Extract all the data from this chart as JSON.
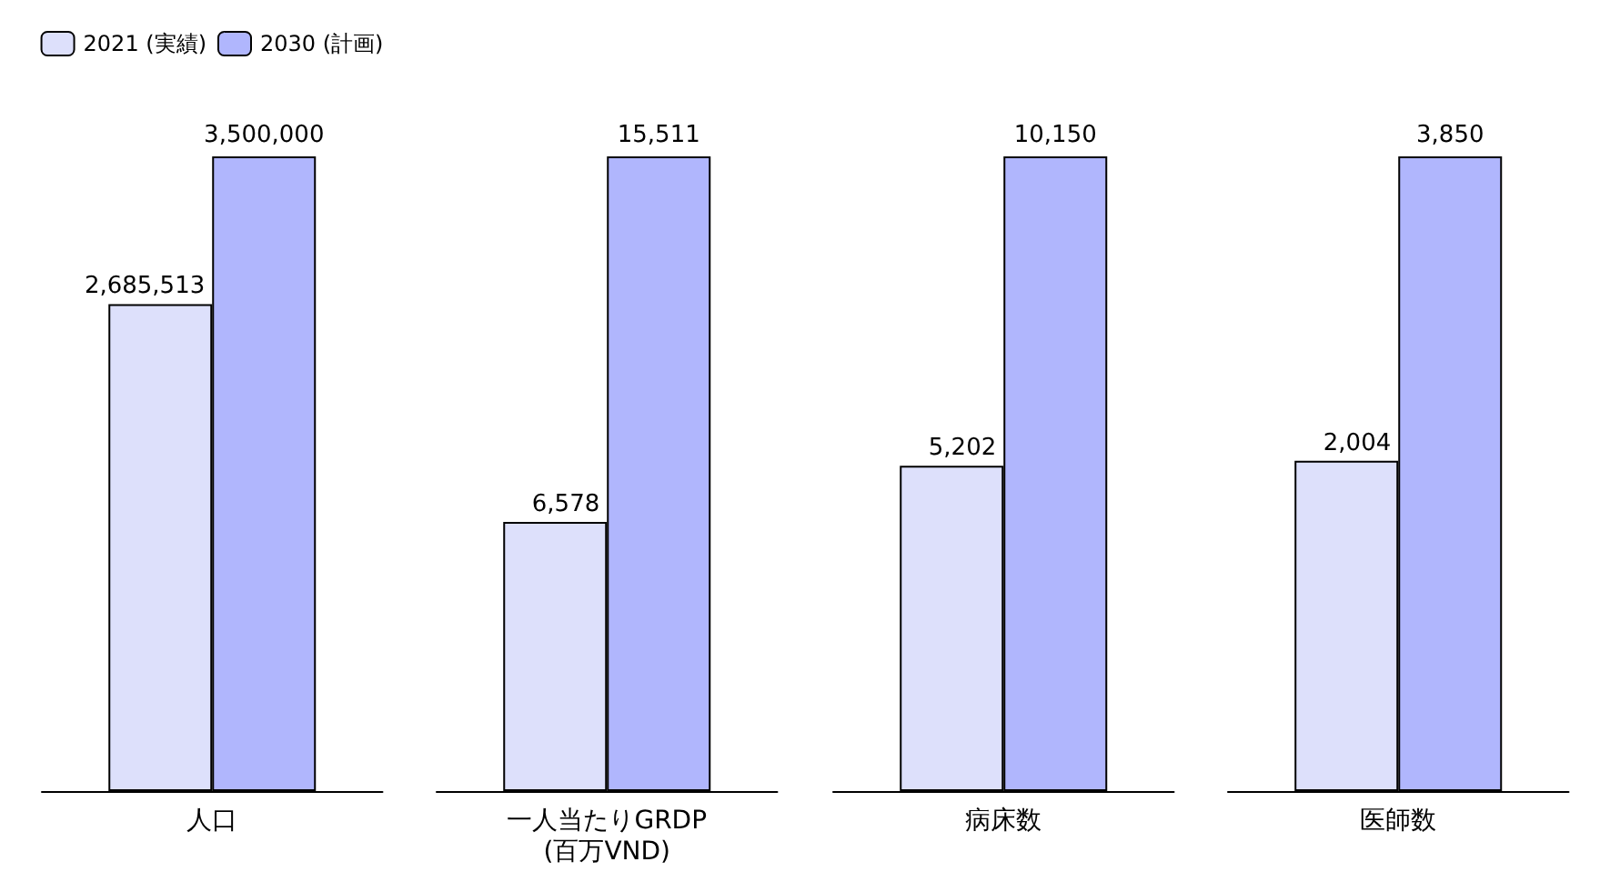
{
  "chart_data": [
    {
      "type": "bar",
      "categories": [
        "人口"
      ],
      "legend": "top",
      "series": [
        {
          "name": "2021 (実績)",
          "color": "#dde0fb",
          "values": [
            2685513
          ],
          "value_labels": [
            "2,685,513"
          ]
        },
        {
          "name": "2030 (計画)",
          "color": "#b0b6fd",
          "values": [
            3500000
          ],
          "value_labels": [
            "3,500,000"
          ]
        }
      ]
    },
    {
      "type": "bar",
      "categories": [
        "一人当たりGRDP\n(百万VND)"
      ],
      "series": [
        {
          "color": "#dde0fb",
          "values": [
            6578
          ],
          "value_labels": [
            "6,578"
          ]
        },
        {
          "color": "#b0b6fd",
          "values": [
            15511
          ],
          "value_labels": [
            "15,511"
          ]
        }
      ]
    },
    {
      "type": "bar",
      "categories": [
        "病床数"
      ],
      "series": [
        {
          "color": "#dde0fb",
          "values": [
            5202
          ],
          "value_labels": [
            "5,202"
          ]
        },
        {
          "color": "#b0b6fd",
          "values": [
            10150
          ],
          "value_labels": [
            "10,150"
          ]
        }
      ]
    },
    {
      "type": "bar",
      "categories": [
        "医師数"
      ],
      "series": [
        {
          "color": "#dde0fb",
          "values": [
            2004
          ],
          "value_labels": [
            "2,004"
          ]
        },
        {
          "color": "#b0b6fd",
          "values": [
            3850
          ],
          "value_labels": [
            "3,850"
          ]
        }
      ]
    }
  ]
}
